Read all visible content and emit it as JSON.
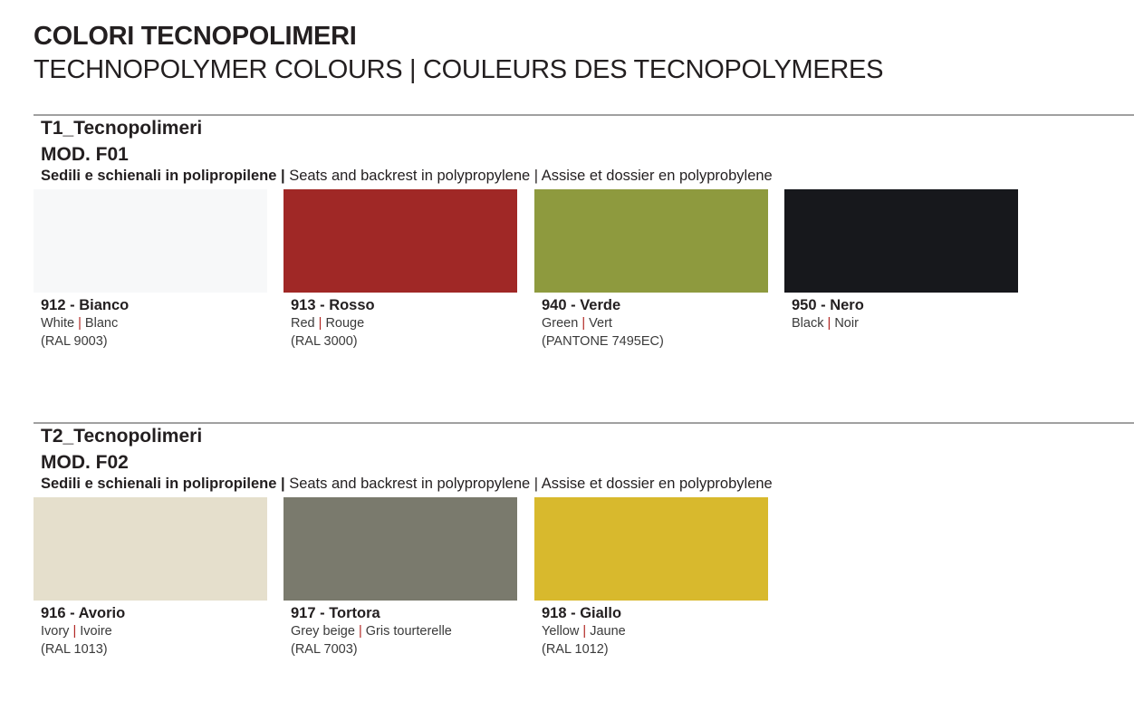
{
  "title": "COLORI TECNOPOLIMERI",
  "subtitle": "TECHNOPOLYMER COLOURS | COULEURS DES TECNOPOLYMERES",
  "sections": [
    {
      "heading": "T1_Tecnopolimeri",
      "model": "MOD. F01",
      "desc_it": "Sedili e schienali in polipropilene",
      "desc_en": "Seats and backrest in polypropylene",
      "desc_fr": "Assise et dossier en polyprobylene",
      "colors": [
        {
          "name": "912 - Bianco",
          "en": "White",
          "fr": "Blanc",
          "code": "(RAL 9003)",
          "hex": "#f7f8f9"
        },
        {
          "name": "913 - Rosso",
          "en": "Red",
          "fr": "Rouge",
          "code": "(RAL 3000)",
          "hex": "#a02826"
        },
        {
          "name": "940 - Verde",
          "en": "Green",
          "fr": "Vert",
          "code": "(PANTONE 7495EC)",
          "hex": "#8e9a3e"
        },
        {
          "name": "950 - Nero",
          "en": "Black",
          "fr": "Noir",
          "code": "",
          "hex": "#17181c"
        }
      ]
    },
    {
      "heading": "T2_Tecnopolimeri",
      "model": "MOD. F02",
      "desc_it": "Sedili e schienali in polipropilene",
      "desc_en": "Seats and backrest in polypropylene",
      "desc_fr": "Assise et dossier en polyprobylene",
      "colors": [
        {
          "name": "916 - Avorio",
          "en": "Ivory",
          "fr": "Ivoire",
          "code": "(RAL 1013)",
          "hex": "#e5dfcc"
        },
        {
          "name": "917 - Tortora",
          "en": "Grey beige",
          "fr": "Gris tourterelle",
          "code": "(RAL 7003)",
          "hex": "#7a7a6d"
        },
        {
          "name": "918 - Giallo",
          "en": "Yellow",
          "fr": "Jaune",
          "code": "(RAL 1012)",
          "hex": "#d8b92d"
        }
      ]
    }
  ]
}
